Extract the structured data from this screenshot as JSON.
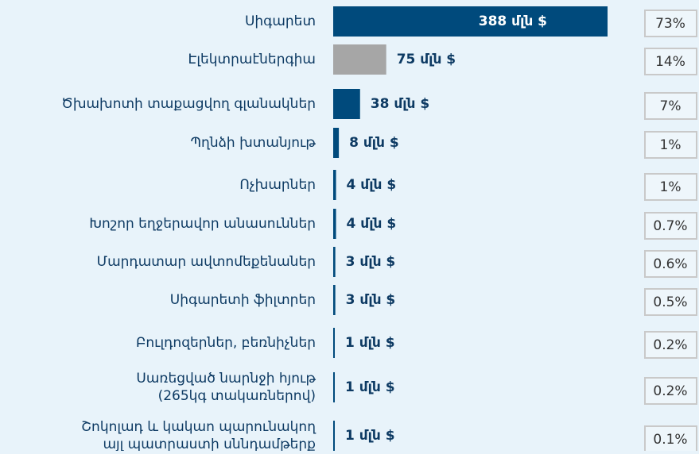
{
  "chart_data": {
    "type": "bar",
    "orientation": "horizontal",
    "categories": [
      [
        "Սիգարետ"
      ],
      [
        "Էլեկտրաէներգիա"
      ],
      [
        "Ծխախոտի տաքացվող գլանակներ"
      ],
      [
        "Պղնձի խտանյութ"
      ],
      [
        "Ոչխարներ"
      ],
      [
        "Խոշոր եղջերավոր անասուններ"
      ],
      [
        "Մարդատար ավտոմեքենաներ"
      ],
      [
        "Սիգարետի ֆիլտրեր"
      ],
      [
        "Բուլդոզերներ, բեռնիչներ"
      ],
      [
        "Սառեցված նարնջի հյութ",
        "(265կգ տակառներով)"
      ],
      [
        "Շոկոլադ և կակաո պարունակող",
        "այլ պատրաստի սննդամթերք"
      ]
    ],
    "values": [
      388,
      75,
      38,
      8,
      4,
      4,
      3,
      3,
      1,
      1,
      1
    ],
    "value_labels": [
      "388 մլն $",
      "75 մլն $",
      "38 մլն $",
      "8 մլն $",
      "4 մլն $",
      "4 մլն $",
      "3 մլն $",
      "3 մլն $",
      "1 մլն $",
      "1 մլն $",
      "1 մլն $"
    ],
    "colors": [
      "#004a7c",
      "#a6a6a6",
      "#004a7c",
      "#004a7c",
      "#004a7c",
      "#004a7c",
      "#004a7c",
      "#004a7c",
      "#004a7c",
      "#004a7c",
      "#004a7c"
    ],
    "shares": [
      73,
      14,
      7,
      1,
      1,
      0.7,
      0.6,
      0.5,
      0.2,
      0.2,
      0.1
    ],
    "share_labels": [
      "73%",
      "14%",
      "7%",
      "1%",
      "1%",
      "0.7%",
      "0.6%",
      "0.5%",
      "0.2%",
      "0.2%",
      "0.1%"
    ]
  }
}
